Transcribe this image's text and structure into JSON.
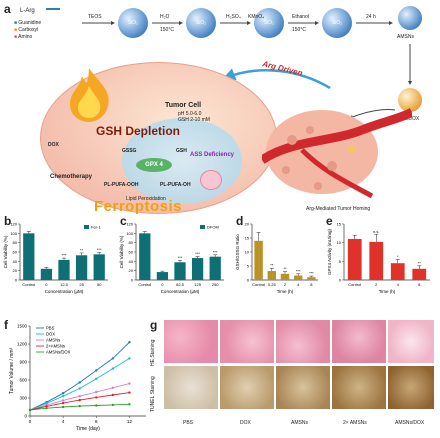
{
  "panel_labels": {
    "a": "a",
    "b": "b",
    "c": "c",
    "d": "d",
    "e": "e",
    "f": "f",
    "g": "g"
  },
  "scheme": {
    "legend": [
      "Guanidine",
      "Carboxyl",
      "Amino"
    ],
    "reagent": "L-Arg",
    "steps": [
      "TEOS",
      "H₂O",
      "H₂SO₄",
      "KMnO₄",
      "Ethanol",
      "24 h"
    ],
    "temps": [
      "150°C",
      "150°C"
    ],
    "sphere_label": "SiO₂",
    "amsns": "AMSNs",
    "amsns_dox": "AMSNs/DOX",
    "arg_driven": "Arg Driven",
    "tumor_cell": "Tumor Cell",
    "ph": "pH 5.0-6.0",
    "gsh_conc": "GSH 2-10 mM",
    "gsh_depletion": "GSH Depletion",
    "gssg": "GSSG",
    "gsh": "GSH",
    "gpx4": "GPX 4",
    "ass_deficiency": "ASS Deficiency",
    "chemotherapy": "Chemotherapy",
    "pl_pufa_ooh": "PL-PUFA-OOH",
    "pl_pufa_oh": "PL-PUFA-OH",
    "lipid_perox": "Lipid Peroxidation",
    "ferroptosis": "Ferroptosis",
    "homing": "Arg-Mediated Tumor Homing",
    "dox_short": "DOX"
  },
  "chart_data": [
    {
      "panel": "b",
      "type": "bar",
      "ylabel": "Cell Viability (%)",
      "xlabel": "Concentration (μM)",
      "legend": [
        "Fer-1"
      ],
      "categories": [
        "Control",
        "0",
        "12.5",
        "25",
        "50"
      ],
      "values": [
        100,
        24,
        43,
        53,
        55
      ],
      "errors": [
        4,
        3,
        4,
        5,
        4
      ],
      "ylim": [
        0,
        120
      ],
      "yticks": [
        0,
        20,
        40,
        60,
        80,
        100,
        120
      ],
      "stars": [
        "",
        "",
        "***",
        "**",
        "***"
      ],
      "colors": [
        "#0e6f74",
        "#0e6f74",
        "#0e6f74",
        "#0e6f74",
        "#0e6f74"
      ]
    },
    {
      "panel": "c",
      "type": "bar",
      "ylabel": "Cell Viability (%)",
      "xlabel": "Concentration (μM)",
      "legend": [
        "DFOM"
      ],
      "categories": [
        "Control",
        "0",
        "62.5",
        "125",
        "250"
      ],
      "values": [
        100,
        17,
        38,
        47,
        50
      ],
      "errors": [
        4,
        2,
        4,
        3,
        4
      ],
      "ylim": [
        0,
        120
      ],
      "yticks": [
        0,
        20,
        40,
        60,
        80,
        100,
        120
      ],
      "stars": [
        "",
        "",
        "***",
        "***",
        "***"
      ],
      "colors": [
        "#0e6f74",
        "#0e6f74",
        "#0e6f74",
        "#0e6f74",
        "#0e6f74"
      ]
    },
    {
      "panel": "d",
      "type": "bar",
      "ylabel": "GSH/GSSG Ratio",
      "xlabel": "Time (h)",
      "categories": [
        "Control",
        "0.25",
        "2",
        "4",
        "8"
      ],
      "values": [
        14,
        3.2,
        2.2,
        1.6,
        1.0
      ],
      "errors": [
        3,
        1,
        0.8,
        0.6,
        0.4
      ],
      "ylim": [
        0,
        20
      ],
      "yticks": [
        0,
        5,
        10,
        15,
        20
      ],
      "stars": [
        "",
        "**",
        "**",
        "***",
        "***"
      ],
      "colors": [
        "#b99328",
        "#b99328",
        "#b99328",
        "#b99328",
        "#b99328"
      ]
    },
    {
      "panel": "e",
      "type": "bar",
      "ylabel": "GPX4 Activity (mU/mg)",
      "xlabel": "Time (h)",
      "categories": [
        "Control",
        "2",
        "4",
        "8"
      ],
      "values": [
        11,
        10.2,
        4.5,
        3.0
      ],
      "errors": [
        1,
        2,
        1,
        0.8
      ],
      "ylim": [
        0,
        15
      ],
      "yticks": [
        0,
        5,
        10,
        15
      ],
      "stars": [
        "",
        "n.s.",
        "*",
        "**"
      ],
      "colors": [
        "#e0322b",
        "#e0322b",
        "#e0322b",
        "#e0322b"
      ]
    },
    {
      "panel": "f",
      "type": "line",
      "ylabel": "Tumor Volume / mm³",
      "xlabel": "Time (day)",
      "xlim": [
        0,
        14
      ],
      "ylim": [
        0,
        1500
      ],
      "xticks": [
        0,
        4,
        8,
        12
      ],
      "yticks": [
        0,
        300,
        600,
        900,
        1200,
        1500
      ],
      "x": [
        0,
        2,
        4,
        6,
        8,
        10,
        12
      ],
      "series": [
        {
          "name": "PBS",
          "color": "#1f77b4",
          "values": [
            100,
            230,
            380,
            560,
            760,
            960,
            1230
          ]
        },
        {
          "name": "DOX",
          "color": "#17becf",
          "values": [
            100,
            210,
            330,
            460,
            620,
            790,
            960
          ]
        },
        {
          "name": "AMSNs",
          "color": "#e377c2",
          "values": [
            100,
            180,
            260,
            330,
            400,
            470,
            540
          ]
        },
        {
          "name": "2×AMSNs",
          "color": "#d62728",
          "values": [
            100,
            160,
            215,
            265,
            310,
            350,
            390
          ]
        },
        {
          "name": "AMSNs/DOX",
          "color": "#2ca02c",
          "values": [
            100,
            130,
            150,
            165,
            175,
            185,
            195
          ]
        }
      ]
    }
  ],
  "histology": {
    "row_labels": [
      "HE Staining",
      "TUNEL Staining"
    ],
    "columns": [
      "PBS",
      "DOX",
      "AMSNs",
      "2× AMSNs",
      "AMSNs/DOX"
    ]
  }
}
